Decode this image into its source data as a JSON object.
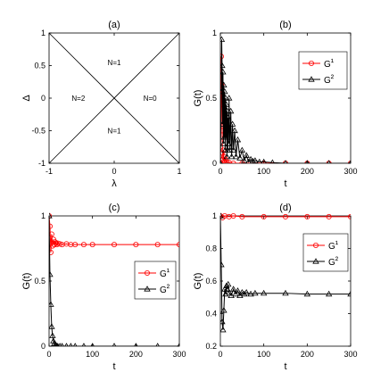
{
  "chart_data": [
    {
      "panel": "(a)",
      "type": "diagram",
      "xlabel": "λ",
      "ylabel": "Δ",
      "xlim": [
        -1,
        1
      ],
      "ylim": [
        -1,
        1
      ],
      "xticks": [
        "-1",
        "0",
        "1"
      ],
      "yticks": [
        "-1",
        "-0.5",
        "0",
        "0.5",
        "1"
      ],
      "lines": [
        {
          "x": [
            -1,
            1
          ],
          "y": [
            -1,
            1
          ]
        },
        {
          "x": [
            -1,
            1
          ],
          "y": [
            1,
            -1
          ]
        }
      ],
      "regions": [
        {
          "label": "N=1",
          "x": 0,
          "y": 0.55
        },
        {
          "label": "N=2",
          "x": -0.55,
          "y": 0
        },
        {
          "label": "N=0",
          "x": 0.55,
          "y": 0
        },
        {
          "label": "N=1",
          "x": 0,
          "y": -0.5
        }
      ]
    },
    {
      "panel": "(b)",
      "type": "line",
      "xlabel": "t",
      "ylabel": "G(t)",
      "xlim": [
        0,
        300
      ],
      "ylim": [
        0,
        1
      ],
      "xticks": [
        "0",
        "100",
        "200",
        "300"
      ],
      "yticks": [
        "0",
        "0.5",
        "1"
      ],
      "legend_position": "top-right",
      "series": [
        {
          "name": "G¹",
          "color": "#ff0000",
          "marker": "circle",
          "x": [
            0,
            1,
            2,
            3,
            4,
            5,
            6,
            7,
            8,
            9,
            10,
            12,
            15,
            20,
            30,
            50,
            100,
            150,
            200,
            250,
            300
          ],
          "y": [
            0,
            0.45,
            0.82,
            0.6,
            0.25,
            0.08,
            0.03,
            0.1,
            0.05,
            0.02,
            0.01,
            0.03,
            0.01,
            0.005,
            0,
            0,
            0,
            0,
            0,
            0,
            0
          ]
        },
        {
          "name": "G²",
          "color": "#000000",
          "marker": "triangle",
          "x": [
            0,
            2,
            3,
            4,
            5,
            6,
            7,
            8,
            9,
            10,
            11,
            12,
            13,
            14,
            15,
            16,
            17,
            18,
            19,
            20,
            22,
            24,
            26,
            28,
            30,
            33,
            36,
            40,
            45,
            50,
            55,
            60,
            65,
            70,
            75,
            80,
            90,
            100,
            120,
            150,
            200,
            250,
            300
          ],
          "y": [
            0,
            0.55,
            0.95,
            0.75,
            0.3,
            0.7,
            0.15,
            0.6,
            0.2,
            0.55,
            0.1,
            0.5,
            0.2,
            0.45,
            0.05,
            0.4,
            0.1,
            0.35,
            0.15,
            0.5,
            0.1,
            0.4,
            0.05,
            0.3,
            0.1,
            0.25,
            0.05,
            0.18,
            0.04,
            0.1,
            0.02,
            0.06,
            0.01,
            0.03,
            0.015,
            0.02,
            0.01,
            0.01,
            0.005,
            0,
            0,
            0,
            0
          ]
        }
      ]
    },
    {
      "panel": "(c)",
      "type": "line",
      "xlabel": "t",
      "ylabel": "G(t)",
      "xlim": [
        0,
        300
      ],
      "ylim": [
        0,
        1
      ],
      "xticks": [
        "0",
        "100",
        "200",
        "300"
      ],
      "yticks": [
        "0",
        "0.5",
        "1"
      ],
      "legend_position": "bottom-right",
      "series": [
        {
          "name": "G¹",
          "color": "#ff0000",
          "marker": "circle",
          "x": [
            0,
            2,
            4,
            6,
            8,
            10,
            12,
            14,
            16,
            18,
            20,
            25,
            30,
            40,
            50,
            60,
            80,
            100,
            150,
            200,
            250,
            300
          ],
          "y": [
            1.0,
            0.92,
            0.72,
            0.86,
            0.77,
            0.82,
            0.78,
            0.8,
            0.79,
            0.78,
            0.79,
            0.785,
            0.78,
            0.785,
            0.78,
            0.78,
            0.78,
            0.78,
            0.78,
            0.78,
            0.78,
            0.78
          ]
        },
        {
          "name": "G²",
          "color": "#000000",
          "marker": "triangle",
          "x": [
            0,
            2,
            4,
            6,
            8,
            10,
            12,
            14,
            16,
            18,
            20,
            25,
            30,
            40,
            50,
            60,
            80,
            100,
            150,
            200,
            250,
            300
          ],
          "y": [
            1.0,
            0.55,
            0.32,
            0.15,
            0.08,
            0.04,
            0.02,
            0.01,
            0.005,
            0,
            0,
            0,
            0,
            0,
            0,
            0,
            0,
            0,
            0,
            0,
            0,
            0
          ]
        }
      ]
    },
    {
      "panel": "(d)",
      "type": "line",
      "xlabel": "t",
      "ylabel": "G(t)",
      "xlim": [
        0,
        300
      ],
      "ylim": [
        0.2,
        1
      ],
      "xticks": [
        "0",
        "100",
        "200",
        "300"
      ],
      "yticks": [
        "0.2",
        "0.4",
        "0.6",
        "0.8",
        "1"
      ],
      "legend_position": "top-right",
      "series": [
        {
          "name": "G¹",
          "color": "#ff0000",
          "marker": "circle",
          "x": [
            0,
            5,
            10,
            20,
            30,
            50,
            100,
            150,
            200,
            250,
            300
          ],
          "y": [
            1.0,
            0.99,
            1.0,
            0.995,
            1.0,
            0.995,
            0.995,
            0.995,
            0.995,
            0.995,
            0.995
          ]
        },
        {
          "name": "G²",
          "color": "#000000",
          "marker": "triangle",
          "x": [
            0,
            2,
            4,
            6,
            8,
            10,
            12,
            14,
            16,
            18,
            20,
            25,
            30,
            35,
            40,
            45,
            50,
            55,
            60,
            70,
            80,
            100,
            150,
            200,
            250,
            300
          ],
          "y": [
            1.0,
            0.7,
            0.35,
            0.3,
            0.42,
            0.55,
            0.52,
            0.57,
            0.55,
            0.58,
            0.53,
            0.51,
            0.55,
            0.52,
            0.54,
            0.51,
            0.53,
            0.52,
            0.53,
            0.52,
            0.525,
            0.525,
            0.525,
            0.52,
            0.52,
            0.52
          ]
        }
      ]
    }
  ]
}
